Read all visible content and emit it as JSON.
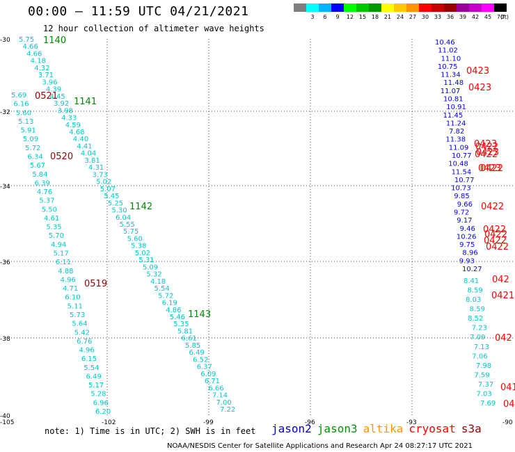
{
  "header": {
    "title": "00:00 – 11:59 UTC 04/21/2021",
    "subtitle": "12 hour collection of altimeter wave heights"
  },
  "legend": {
    "unit": "(ft)",
    "colors": [
      "#7f7f7f",
      "#00ffff",
      "#00b4ff",
      "#0000ff",
      "#00ff00",
      "#00c800",
      "#009600",
      "#ffff00",
      "#ffc800",
      "#ff9600",
      "#ff0000",
      "#c80000",
      "#960000",
      "#960096",
      "#c800c8",
      "#ff00ff",
      "#000000"
    ],
    "labels": [
      "3",
      "6",
      "9",
      "12",
      "15",
      "18",
      "21",
      "24",
      "27",
      "30",
      "33",
      "36",
      "39",
      "42",
      "45",
      "70"
    ]
  },
  "map": {
    "y_ticks": [
      "-30",
      "-32",
      "-34",
      "-36",
      "-38",
      "-40"
    ],
    "x_ticks": [
      "-105",
      "-102",
      "-99",
      "-96",
      "-93",
      "-90"
    ]
  },
  "tracks": [
    {
      "name": "jason3",
      "color": "#00c8c8",
      "values": [
        "5.75",
        "4.66",
        "4.66",
        "4.18",
        "4.32",
        "3.71",
        "3.96",
        "4.39",
        "4.45",
        "3.92",
        "3.98",
        "4.33",
        "4.59",
        "4.68",
        "4.40",
        "4.41",
        "4.04",
        "3.81",
        "4.31",
        "3.73",
        "5.02",
        "5.07",
        "5.45",
        "5.25",
        "5.30",
        "6.04",
        "5.55",
        "5.75",
        "5.60",
        "5.38",
        "5.02",
        "5.31",
        "5.09",
        "5.32",
        "4.18",
        "5.54",
        "5.72",
        "6.19",
        "4.86",
        "5.46",
        "5.35",
        "5.81",
        "6.61",
        "5.85",
        "6.49",
        "6.52",
        "6.37",
        "6.09",
        "6.71",
        "6.66",
        "7.14",
        "7.00",
        "7.22"
      ]
    },
    {
      "name": "jason3-west",
      "color": "#00c8c8",
      "values": [
        "5.69",
        "6.16",
        "5.60",
        "5.13",
        "5.91",
        "5.09",
        "5.72",
        "6.34",
        "5.67",
        "5.84",
        "6.39",
        "4.76",
        "5.37",
        "5.50",
        "4.61",
        "5.35",
        "5.70",
        "4.94",
        "5.17",
        "6.11",
        "4.88",
        "4.96",
        "4.71",
        "6.10",
        "5.11",
        "5.73",
        "5.64",
        "5.42",
        "6.76",
        "4.96",
        "6.15",
        "5.54",
        "6.49",
        "5.17",
        "5.28",
        "6.96",
        "6.20"
      ]
    },
    {
      "name": "jason2",
      "color": "#0000ff",
      "values": [
        "10.46",
        "11.02",
        "11.10",
        "10.75",
        "11.34",
        "11.48",
        "11.07",
        "10.81",
        "10.91",
        "11.45",
        "11.24",
        "7.82",
        "11.38",
        "11.09",
        "10.77",
        "10.48",
        "11.54",
        "10.77",
        "10.73",
        "9.85",
        "9.66",
        "9.72",
        "9.17",
        "9.46",
        "10.26",
        "9.75",
        "8.96",
        "9.93",
        "10.27"
      ]
    },
    {
      "name": "cryosat-near",
      "color": "#00c8c8",
      "values": [
        "8.41",
        "8.59",
        "8.03",
        "8.59",
        "8.52",
        "7.23",
        "7.09",
        "7.13",
        "7.06",
        "7.98",
        "7.59",
        "7.37",
        "7.03",
        "7.69"
      ]
    }
  ],
  "time_labels": [
    {
      "text": "1140",
      "color": "#008c00"
    },
    {
      "text": "1141",
      "color": "#008c00"
    },
    {
      "text": "1142",
      "color": "#008c00"
    },
    {
      "text": "1143",
      "color": "#008c00"
    },
    {
      "text": "0521",
      "color": "#960000"
    },
    {
      "text": "0520",
      "color": "#960000"
    },
    {
      "text": "0519",
      "color": "#960000"
    },
    {
      "text": "0423",
      "color": "#ff0000"
    },
    {
      "text": "0423",
      "color": "#ff0000"
    },
    {
      "text": "0423",
      "color": "#ff0000"
    },
    {
      "text": "0423",
      "color": "#ff0000"
    },
    {
      "text": "0423",
      "color": "#ff0000"
    },
    {
      "text": "0422",
      "color": "#ff0000"
    },
    {
      "text": "0422",
      "color": "#ff0000"
    },
    {
      "text": "0422",
      "color": "#ff0000"
    },
    {
      "text": "0422",
      "color": "#ff0000"
    },
    {
      "text": "0422",
      "color": "#ff0000"
    },
    {
      "text": "0422",
      "color": "#ff0000"
    },
    {
      "text": "0422",
      "color": "#ff0000"
    },
    {
      "text": "0422",
      "color": "#ff0000"
    },
    {
      "text": "0421",
      "color": "#ff0000"
    },
    {
      "text": "042",
      "color": "#ff0000"
    },
    {
      "text": "042",
      "color": "#ff0000"
    },
    {
      "text": "041",
      "color": "#ff0000"
    },
    {
      "text": "04",
      "color": "#ff0000"
    }
  ],
  "footer": {
    "note": "note:  1) Time is in UTC; 2) SWH is in feet",
    "satellites": [
      {
        "name": "jason2",
        "color": "#0000cc"
      },
      {
        "name": "jason3",
        "color": "#009600"
      },
      {
        "name": "altika",
        "color": "#ff9600"
      },
      {
        "name": "cryosat",
        "color": "#ff0000"
      },
      {
        "name": "s3a",
        "color": "#960000"
      }
    ],
    "credit": "NOAA/NESDIS Center for Satellite Applications and Research    Apr 24 08:27:17 UTC 2021"
  }
}
